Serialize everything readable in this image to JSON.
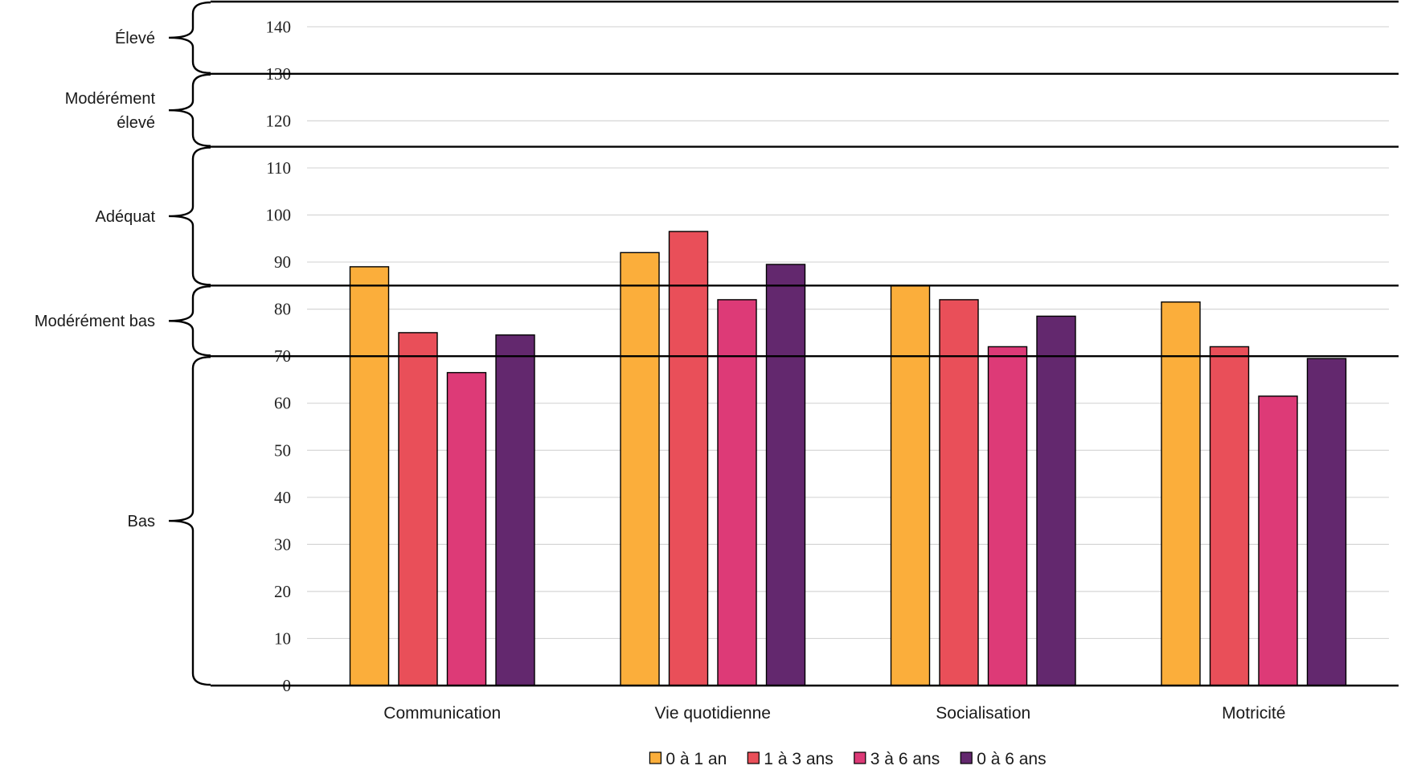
{
  "chart_data": {
    "type": "bar",
    "categories": [
      "Communication",
      "Vie quotidienne",
      "Socialisation",
      "Motricité"
    ],
    "series": [
      {
        "name": "0 à 1 an",
        "color": "#FBAE3B",
        "values": [
          89,
          92,
          85,
          81.5
        ]
      },
      {
        "name": "1 à 3 ans",
        "color": "#E94F59",
        "values": [
          75,
          96.5,
          82,
          72
        ]
      },
      {
        "name": "3 à 6 ans",
        "color": "#DD3A77",
        "values": [
          66.5,
          82,
          72,
          61.5
        ]
      },
      {
        "name": "0 à 6 ans",
        "color": "#63286E",
        "values": [
          74.5,
          89.5,
          78.5,
          69.5
        ]
      }
    ],
    "ylim": [
      0,
      145
    ],
    "yticks": [
      0,
      10,
      20,
      30,
      40,
      50,
      60,
      70,
      80,
      90,
      100,
      110,
      120,
      130,
      140
    ],
    "title": "",
    "xlabel": "",
    "ylabel": "",
    "legend_position": "bottom",
    "bands": [
      {
        "label_lines": [
          "Élevé"
        ],
        "from": 130,
        "to": 145
      },
      {
        "label_lines": [
          "Modérément",
          "élevé"
        ],
        "from": 114.5,
        "to": 130
      },
      {
        "label_lines": [
          "Adéquat"
        ],
        "from": 85,
        "to": 114.5
      },
      {
        "label_lines": [
          "Modérément bas"
        ],
        "from": 70,
        "to": 85
      },
      {
        "label_lines": [
          "Bas"
        ],
        "from": 0,
        "to": 70
      }
    ],
    "zone_boundaries": [
      145,
      130,
      114.5,
      85,
      70,
      0
    ]
  }
}
